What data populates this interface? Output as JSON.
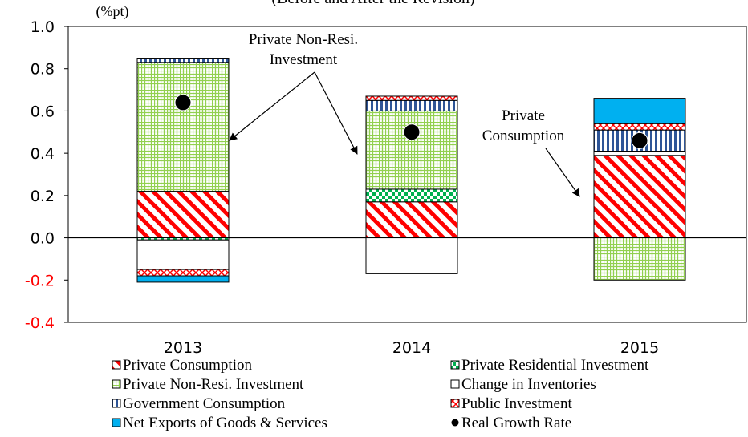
{
  "chart_data": {
    "type": "bar",
    "stacked": true,
    "title": "(Before and After the Revision)",
    "y_label": "(%pt)",
    "categories": [
      "2013",
      "2014",
      "2015"
    ],
    "ylim": [
      -0.4,
      1.0
    ],
    "yticks": [
      {
        "value": -0.4,
        "label": "-0.4"
      },
      {
        "value": -0.2,
        "label": "-0.2"
      },
      {
        "value": 0,
        "label": "0.0"
      },
      {
        "value": 0.2,
        "label": "0.2"
      },
      {
        "value": 0.4,
        "label": "0.4"
      },
      {
        "value": 0.6,
        "label": "0.6"
      },
      {
        "value": 0.8,
        "label": "0.8"
      },
      {
        "value": 1.0,
        "label": "1.0"
      }
    ],
    "series": [
      {
        "name": "Private Consumption",
        "color": "#ff0000",
        "pattern": "diagonal",
        "values": [
          0.22,
          0.17,
          0.39
        ]
      },
      {
        "name": "Private Residential Investment",
        "color": "#00b050",
        "pattern": "checker",
        "values": [
          -0.01,
          0.06,
          null
        ]
      },
      {
        "name": "Private Non-Resi. Investment",
        "color": "#92d050",
        "pattern": "grid",
        "values": [
          0.61,
          0.37,
          -0.2
        ]
      },
      {
        "name": "Change in Inventories",
        "color": "#ffffff",
        "pattern": "solid",
        "values": [
          -0.14,
          -0.17,
          0.02
        ]
      },
      {
        "name": "Government Consumption",
        "color": "#2e5597",
        "pattern": "vertical",
        "values": [
          0.02,
          0.05,
          0.1
        ]
      },
      {
        "name": "Public Investment",
        "color": "#ff0000",
        "pattern": "crosshatch",
        "values": [
          -0.03,
          0.02,
          0.03
        ]
      },
      {
        "name": "Net Exports of Goods & Services",
        "color": "#00b0f0",
        "pattern": "solid",
        "values": [
          -0.03,
          null,
          0.12
        ]
      },
      {
        "name": "Real Growth Rate",
        "color": "#000000",
        "type": "scatter",
        "values": [
          0.64,
          0.5,
          0.46
        ]
      }
    ],
    "annotations": [
      {
        "lines": [
          "Private Non-Resi.",
          "Investment"
        ]
      },
      {
        "lines": [
          "Private",
          "Consumption"
        ]
      }
    ]
  }
}
